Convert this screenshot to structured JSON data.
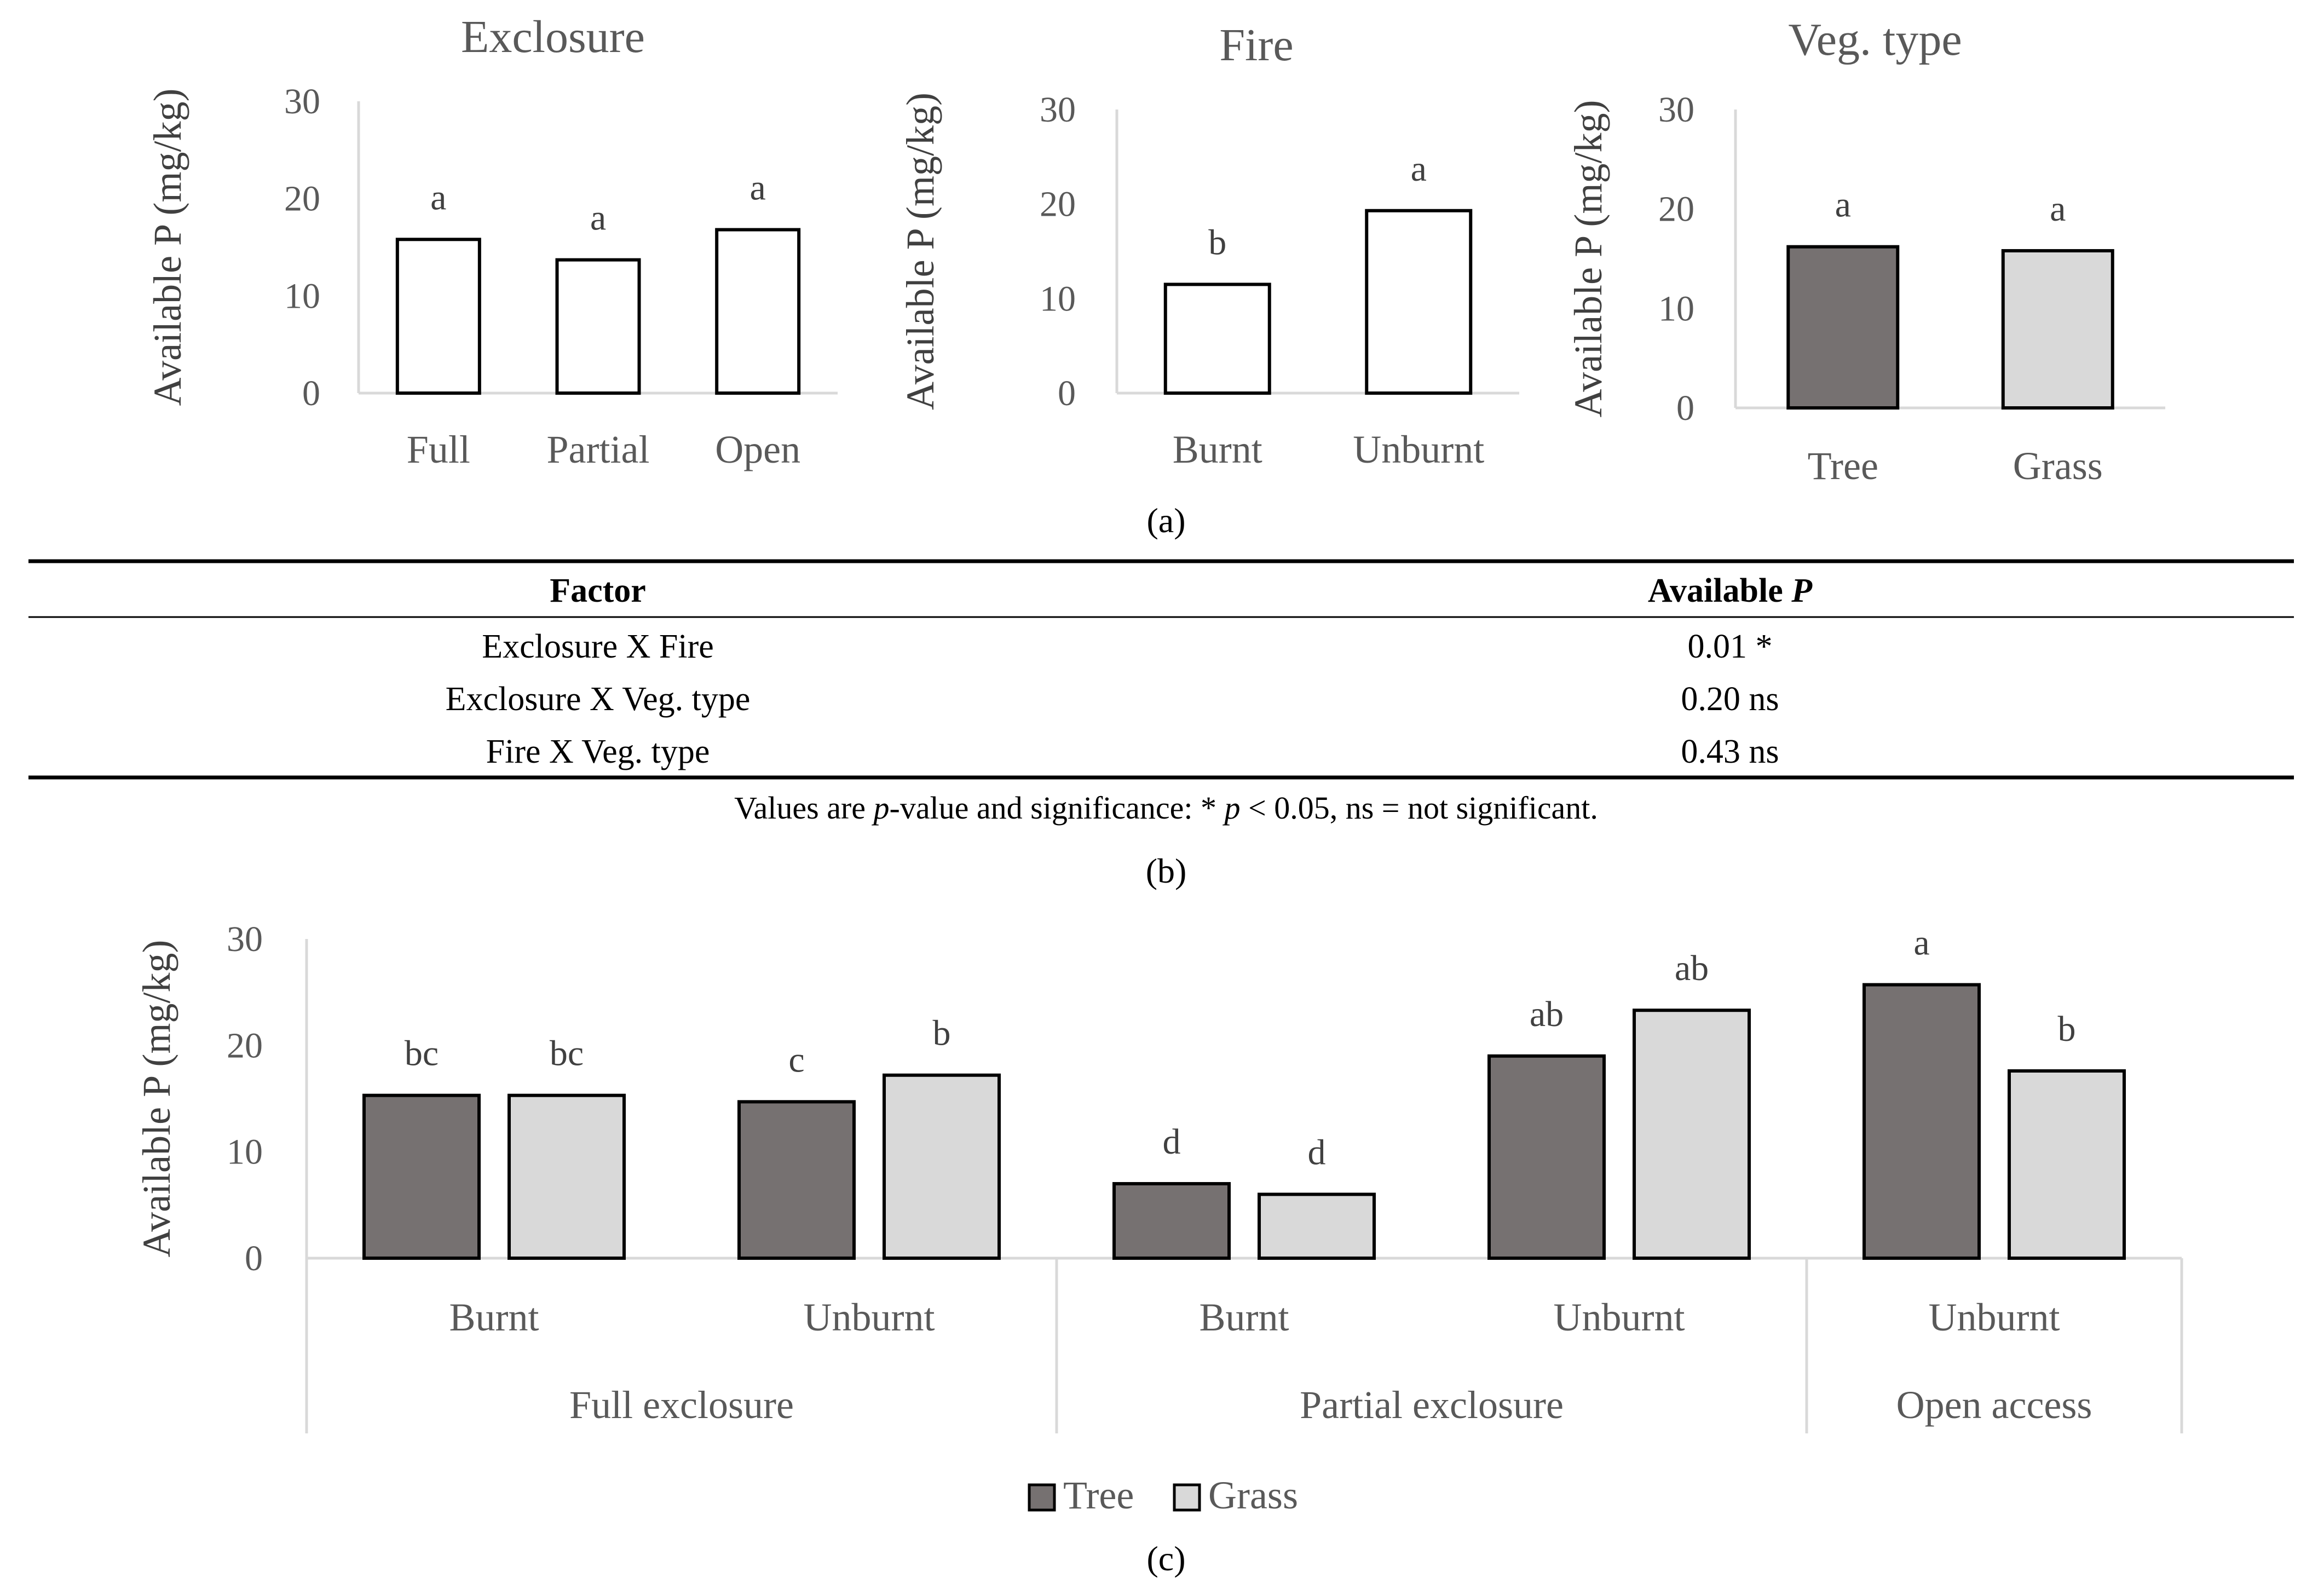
{
  "panel_labels": {
    "a": "(a)",
    "b": "(b)",
    "c": "(c)"
  },
  "colors": {
    "tree": "#767171",
    "grass": "#d9d9d9",
    "open_bar": "#ffffff",
    "axis": "#d9d9d9",
    "edge": "#000000"
  },
  "chart_data": [
    {
      "type": "bar",
      "title": "Exclosure",
      "ylabel": "Available P (mg/kg)",
      "ylim": [
        0,
        30
      ],
      "yticks": [
        0,
        10,
        20,
        30
      ],
      "categories": [
        "Full",
        "Partial",
        "Open"
      ],
      "values": [
        15.8,
        13.7,
        16.8
      ],
      "letters": [
        "a",
        "a",
        "a"
      ]
    },
    {
      "type": "bar",
      "title": "Fire",
      "ylabel": "Available P (mg/kg)",
      "ylim": [
        0,
        30
      ],
      "yticks": [
        0,
        10,
        20,
        30
      ],
      "categories": [
        "Burnt",
        "Unburnt"
      ],
      "values": [
        11.5,
        19.3
      ],
      "letters": [
        "b",
        "a"
      ]
    },
    {
      "type": "bar",
      "title": "Veg. type",
      "ylabel": "Available P (mg/kg)",
      "ylim": [
        0,
        30
      ],
      "yticks": [
        0,
        10,
        20,
        30
      ],
      "categories": [
        "Tree",
        "Grass"
      ],
      "values": [
        16.2,
        15.8
      ],
      "letters": [
        "a",
        "a"
      ]
    },
    {
      "type": "bar",
      "ylabel": "Available P (mg/kg)",
      "ylim": [
        0,
        30
      ],
      "yticks": [
        0,
        10,
        20,
        30
      ],
      "groups": [
        {
          "name": "Full exclosure",
          "subgroups": [
            "Burnt",
            "Unburnt"
          ]
        },
        {
          "name": "Partial exclosure",
          "subgroups": [
            "Burnt",
            "Unburnt"
          ]
        },
        {
          "name": "Open access",
          "subgroups": [
            "Unburnt"
          ]
        }
      ],
      "categories": [
        "Full exclosure Burnt",
        "Full exclosure Unburnt",
        "Partial exclosure Burnt",
        "Partial exclosure Unburnt",
        "Open access Unburnt"
      ],
      "series": [
        {
          "name": "Tree",
          "values": [
            15.3,
            14.7,
            7.0,
            19.0,
            25.7
          ],
          "letters": [
            "bc",
            "c",
            "d",
            "ab",
            "a"
          ]
        },
        {
          "name": "Grass",
          "values": [
            15.3,
            17.2,
            6.0,
            23.3,
            17.6
          ],
          "letters": [
            "bc",
            "b",
            "d",
            "ab",
            "b"
          ]
        }
      ],
      "legend": "bottom"
    }
  ],
  "table": {
    "headers": [
      "Factor",
      "Available "
    ],
    "header_italic": "P",
    "rows": [
      {
        "factor": "Exclosure X Fire",
        "value": "0.01 *"
      },
      {
        "factor": "Exclosure X Veg. type",
        "value": "0.20 ns"
      },
      {
        "factor": "Fire X Veg. type",
        "value": "0.43 ns"
      }
    ],
    "note": {
      "part1": "Values are ",
      "italic1": "p",
      "part2": "-value and significance: * ",
      "italic2": "p",
      "part3": " < 0.05, ns = not significant."
    }
  }
}
